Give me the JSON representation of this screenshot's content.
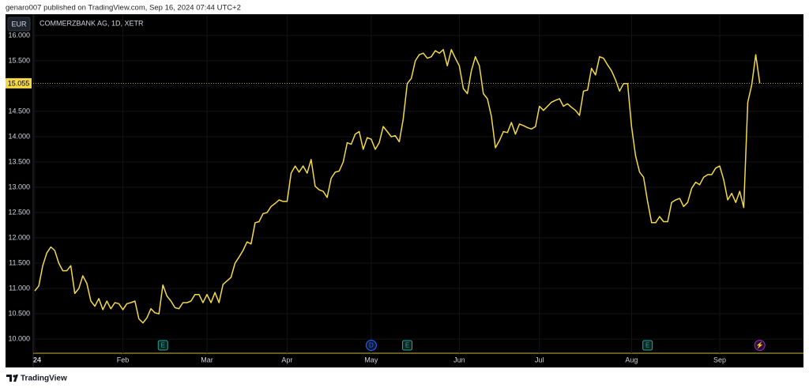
{
  "header": {
    "text": "genaro007 published on TradingView.com, Sep 16, 2024 07:44 UTC+2"
  },
  "chart_data": {
    "type": "line",
    "title": "COMMERZBANK AG, 1D, XETR",
    "currency": "EUR",
    "color": "#f3d94a",
    "categories": [
      "24",
      null,
      null,
      null,
      null,
      null,
      null,
      null,
      null,
      null,
      null,
      null,
      null,
      null,
      null,
      null,
      null,
      null,
      null,
      null,
      null,
      null,
      "Feb",
      null,
      null,
      null,
      null,
      null,
      null,
      null,
      null,
      null,
      null,
      null,
      null,
      null,
      null,
      null,
      null,
      null,
      null,
      null,
      null,
      "Mar",
      null,
      null,
      null,
      null,
      null,
      null,
      null,
      null,
      null,
      null,
      null,
      null,
      null,
      null,
      null,
      null,
      null,
      null,
      null,
      "Apr",
      null,
      null,
      null,
      null,
      null,
      null,
      null,
      null,
      null,
      null,
      null,
      null,
      null,
      null,
      null,
      null,
      null,
      null,
      null,
      null,
      "May",
      null,
      null,
      null,
      null,
      null,
      null,
      null,
      null,
      null,
      null,
      null,
      null,
      null,
      null,
      null,
      null,
      null,
      null,
      null,
      null,
      null,
      "Jun",
      null,
      null,
      null,
      null,
      null,
      null,
      null,
      null,
      null,
      null,
      null,
      null,
      null,
      null,
      null,
      null,
      null,
      null,
      null,
      "Jul",
      null,
      null,
      null,
      null,
      null,
      null,
      null,
      null,
      null,
      null,
      null,
      null,
      null,
      null,
      null,
      null,
      null,
      null,
      null,
      null,
      null,
      null,
      "Aug",
      null,
      null,
      null,
      null,
      null,
      null,
      null,
      null,
      null,
      null,
      null,
      null,
      null,
      null,
      null,
      null,
      null,
      null,
      null,
      null,
      null,
      "Sep",
      null,
      null,
      null,
      null,
      null,
      null,
      null,
      null,
      null,
      null
    ],
    "values": [
      10.95,
      11.05,
      11.45,
      11.7,
      11.82,
      11.75,
      11.5,
      11.35,
      11.35,
      11.45,
      10.9,
      11.0,
      11.25,
      11.1,
      10.75,
      10.65,
      10.8,
      10.58,
      10.75,
      10.6,
      10.72,
      10.7,
      10.58,
      10.7,
      10.72,
      10.75,
      10.4,
      10.32,
      10.42,
      10.6,
      10.52,
      10.5,
      11.07,
      10.85,
      10.75,
      10.62,
      10.6,
      10.72,
      10.72,
      10.75,
      10.88,
      10.88,
      10.72,
      10.88,
      10.72,
      10.92,
      10.72,
      11.08,
      11.15,
      11.22,
      11.5,
      11.62,
      11.75,
      11.92,
      11.88,
      12.3,
      12.32,
      12.48,
      12.5,
      12.62,
      12.68,
      12.75,
      12.72,
      12.72,
      13.28,
      13.42,
      13.3,
      13.42,
      13.28,
      13.55,
      13.02,
      12.95,
      12.92,
      12.8,
      13.18,
      13.3,
      13.32,
      13.5,
      13.88,
      13.85,
      14.05,
      14.1,
      13.75,
      13.98,
      13.95,
      13.75,
      13.88,
      14.2,
      14.1,
      14.0,
      14.02,
      13.9,
      14.35,
      15.05,
      15.15,
      15.5,
      15.62,
      15.65,
      15.55,
      15.58,
      15.7,
      15.65,
      15.72,
      15.4,
      15.72,
      15.55,
      15.4,
      14.95,
      14.85,
      15.3,
      15.58,
      15.4,
      14.85,
      14.75,
      14.4,
      13.78,
      13.92,
      14.1,
      14.08,
      14.28,
      14.05,
      14.25,
      14.22,
      14.18,
      14.15,
      14.2,
      14.6,
      14.52,
      14.6,
      14.68,
      14.72,
      14.75,
      14.6,
      14.65,
      14.58,
      14.52,
      14.42,
      14.9,
      14.92,
      15.35,
      15.22,
      15.58,
      15.55,
      15.42,
      15.3,
      15.12,
      14.9,
      15.05,
      15.05,
      14.2,
      13.62,
      13.3,
      13.2,
      12.72,
      12.3,
      12.3,
      12.42,
      12.32,
      12.32,
      12.7,
      12.75,
      12.78,
      12.62,
      12.7,
      12.98,
      13.1,
      13.05,
      13.2,
      13.25,
      13.25,
      13.38,
      13.42,
      13.15,
      12.75,
      12.88,
      12.7,
      12.92,
      12.6,
      14.68,
      15.02,
      15.62,
      15.055
    ],
    "ylim": [
      9.72,
      16.42
    ],
    "yticks": [
      {
        "value": 10,
        "label": "10.000"
      },
      {
        "value": 10.5,
        "label": "10.500"
      },
      {
        "value": 11,
        "label": "11.000"
      },
      {
        "value": 11.5,
        "label": "11.500"
      },
      {
        "value": 12,
        "label": "12.000"
      },
      {
        "value": 12.5,
        "label": "12.500"
      },
      {
        "value": 13,
        "label": "13.000"
      },
      {
        "value": 13.5,
        "label": "13.500"
      },
      {
        "value": 14,
        "label": "14.000"
      },
      {
        "value": 14.5,
        "label": "14.500"
      },
      {
        "value": 15,
        "label": "15.000"
      },
      {
        "value": 15.5,
        "label": "15.500"
      },
      {
        "value": 16,
        "label": "16.000"
      }
    ],
    "price_line": {
      "value": 15.055,
      "label": "15.055"
    },
    "grid": true,
    "events": [
      {
        "label": "E"
      },
      {
        "label": "D"
      },
      {
        "label": "E"
      },
      {
        "label": "E"
      },
      {
        "label": "⚡"
      }
    ]
  },
  "footer": {
    "brand": "TradingView"
  }
}
